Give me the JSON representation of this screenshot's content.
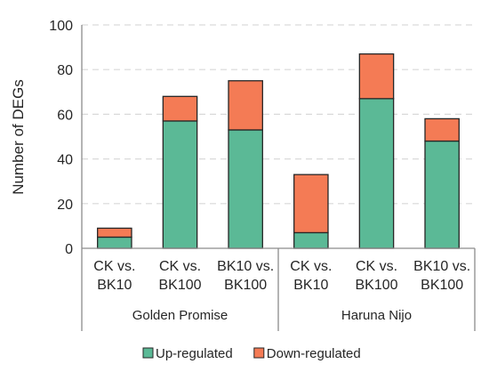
{
  "chart_data": {
    "type": "bar",
    "stacked": true,
    "ylabel": "Number of DEGs",
    "ylim": [
      0,
      100
    ],
    "yticks": [
      0,
      20,
      40,
      60,
      80,
      100
    ],
    "grid": true,
    "legend_position": "bottom",
    "groups": [
      {
        "name": "Golden Promise",
        "categories": [
          {
            "line1": "CK vs.",
            "line2": "BK10"
          },
          {
            "line1": "CK vs.",
            "line2": "BK100"
          },
          {
            "line1": "BK10 vs.",
            "line2": "BK100"
          }
        ]
      },
      {
        "name": "Haruna Nijo",
        "categories": [
          {
            "line1": "CK vs.",
            "line2": "BK10"
          },
          {
            "line1": "CK vs.",
            "line2": "BK100"
          },
          {
            "line1": "BK10 vs.",
            "line2": "BK100"
          }
        ]
      }
    ],
    "series": [
      {
        "name": "Up-regulated",
        "color": "#5bb996",
        "values": [
          5,
          57,
          53,
          7,
          67,
          48
        ]
      },
      {
        "name": "Down-regulated",
        "color": "#f47b55",
        "values": [
          4,
          11,
          22,
          26,
          20,
          10
        ]
      }
    ]
  }
}
